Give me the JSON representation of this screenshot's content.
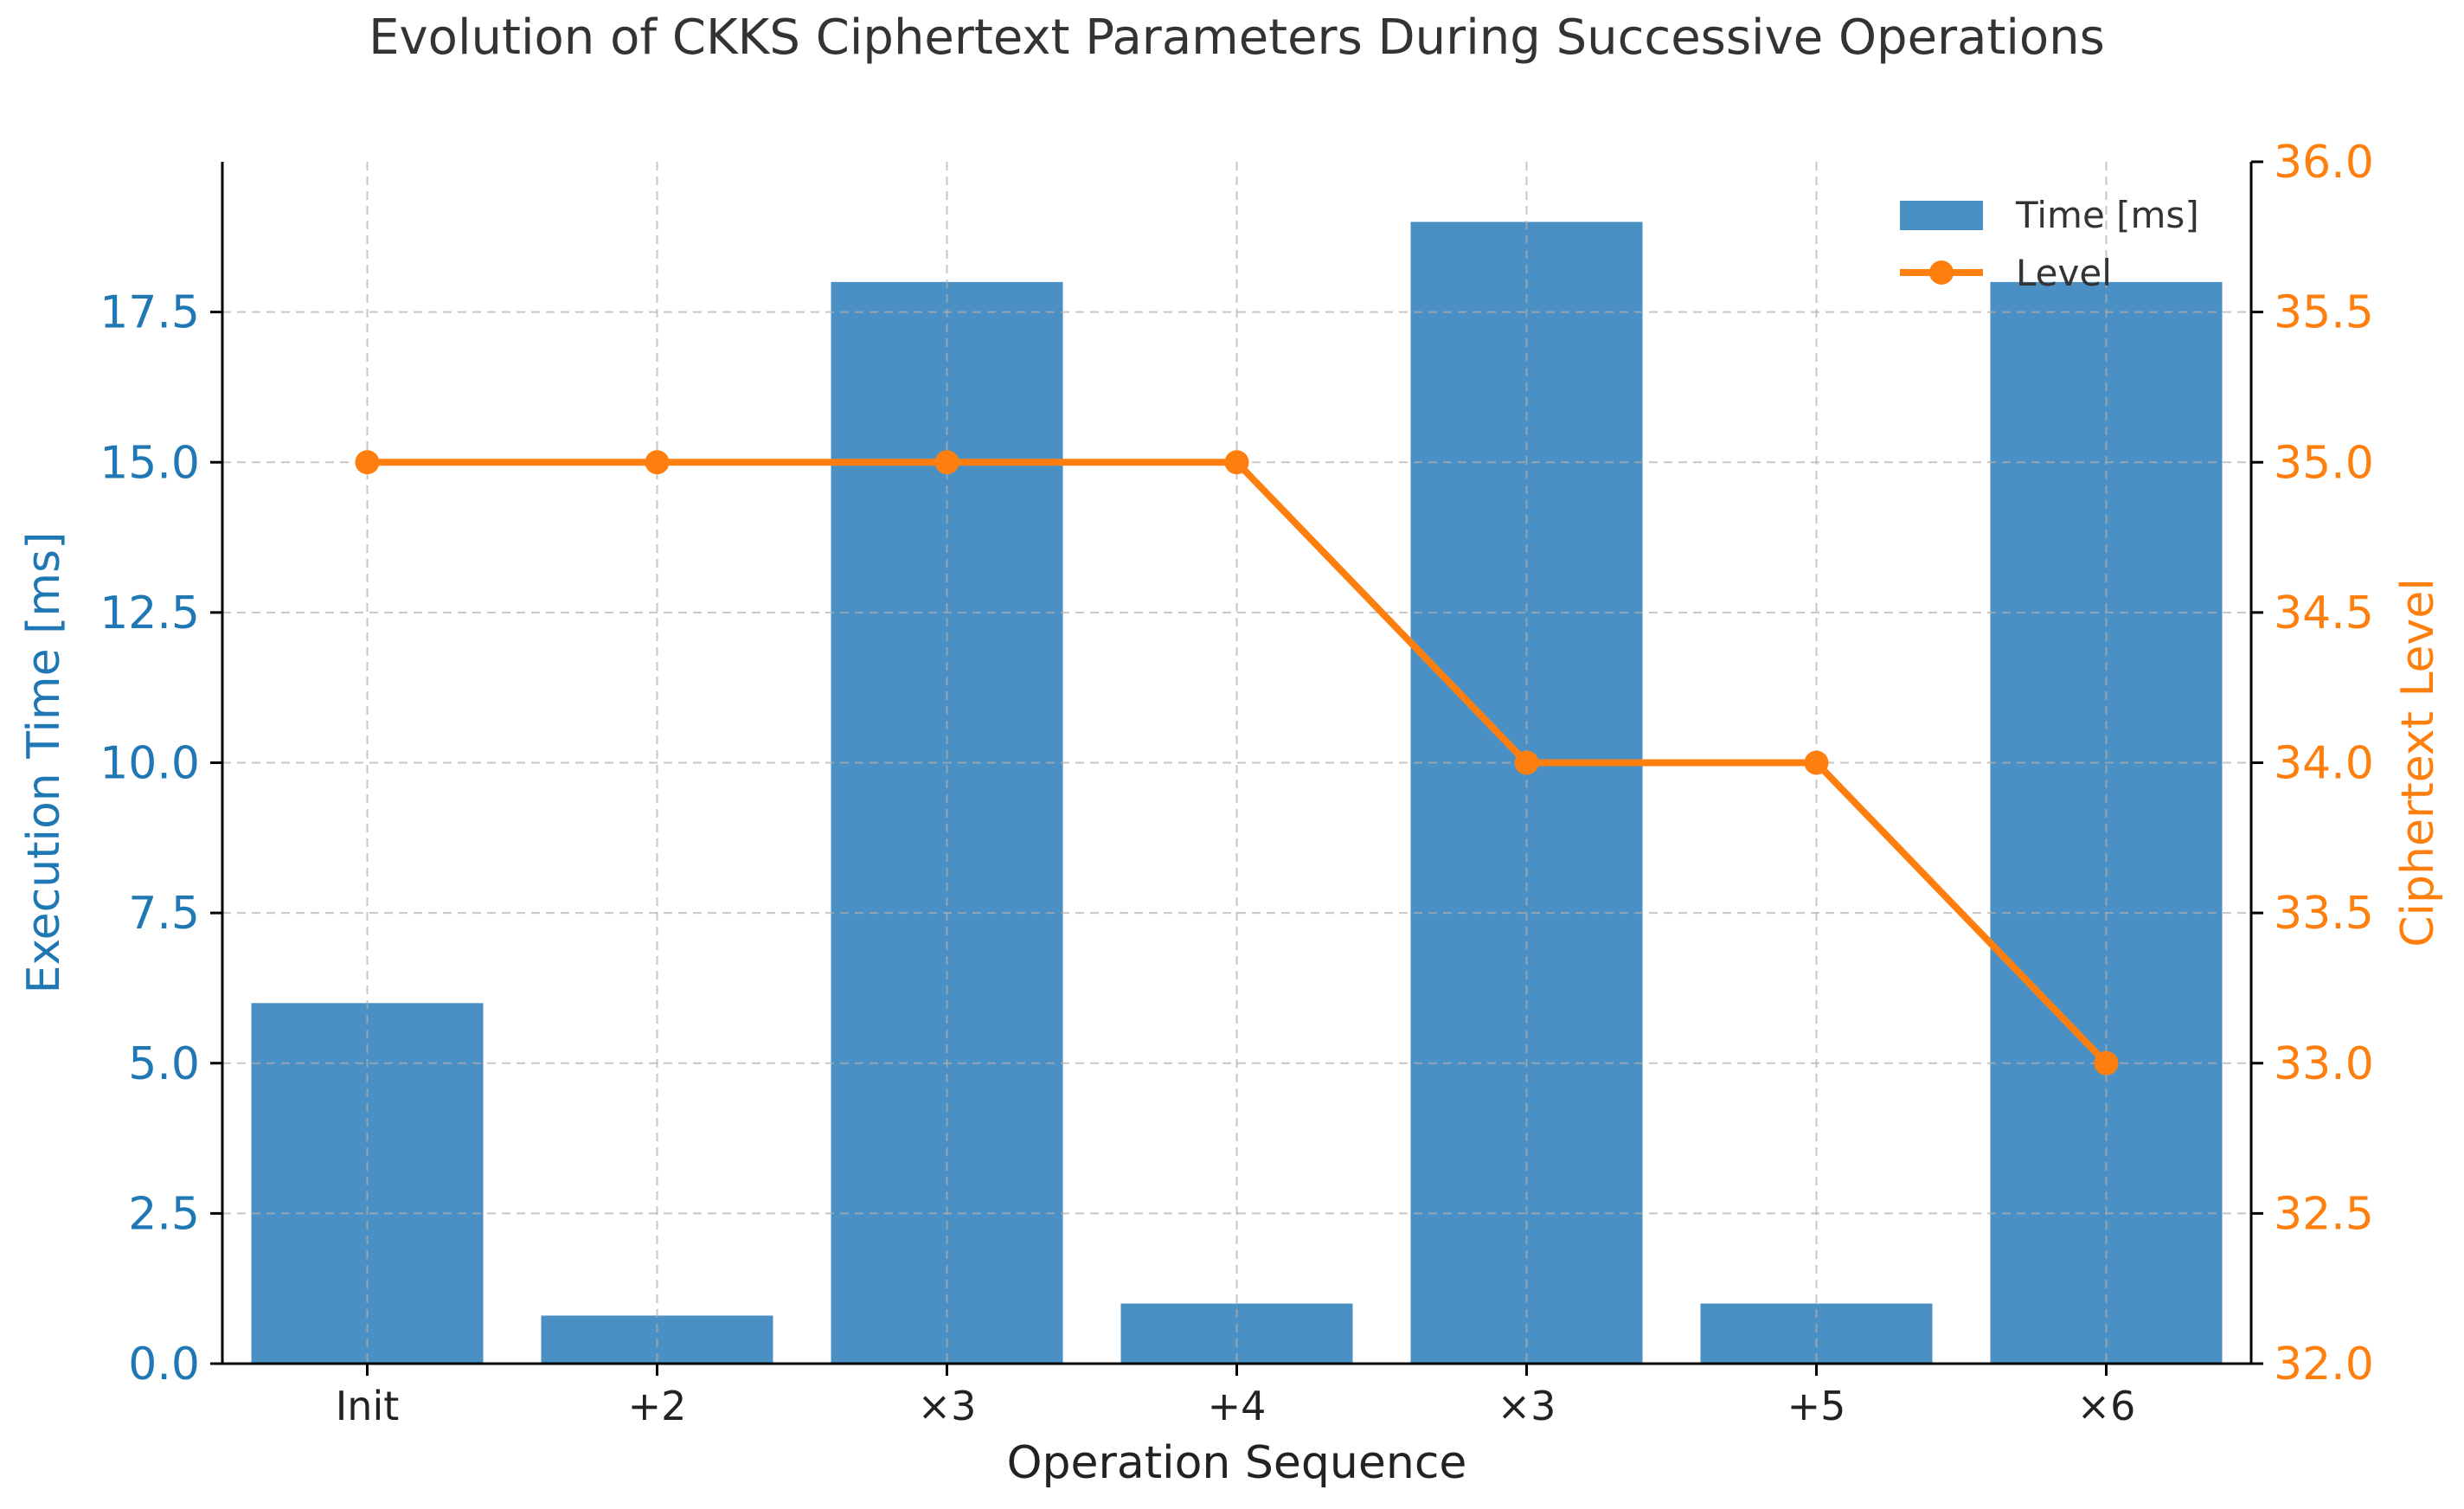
{
  "chart_data": {
    "type": "bar",
    "title": "Evolution of CKKS Ciphertext Parameters During Successive Operations",
    "xlabel": "Operation Sequence",
    "ylabel": "Execution Time [ms]",
    "y2label": "Ciphertext Level",
    "categories": [
      "Init",
      "+2",
      "×3",
      "+4",
      "×3",
      "+5",
      "×6"
    ],
    "ylim": [
      0,
      20
    ],
    "y_ticks": [
      "0.0",
      "2.5",
      "5.0",
      "7.5",
      "10.0",
      "12.5",
      "15.0",
      "17.5"
    ],
    "y2lim": [
      32,
      36
    ],
    "y2_ticks": [
      "32.0",
      "32.5",
      "33.0",
      "33.5",
      "34.0",
      "34.5",
      "35.0",
      "35.5",
      "36.0"
    ],
    "grid": true,
    "legend_position": "top-right",
    "series": [
      {
        "name": "Time [ms]",
        "type": "bar",
        "axis": "left",
        "color": "#4a90c4",
        "values": [
          6,
          0.8,
          18,
          1,
          19,
          1,
          18
        ]
      },
      {
        "name": "Level",
        "type": "line",
        "axis": "right",
        "color": "#ff7f0e",
        "values": [
          35,
          35,
          35,
          35,
          34,
          34,
          33
        ]
      }
    ],
    "colors": {
      "left_axis": "#1f77b4",
      "right_axis": "#ff7f0e",
      "grid": "#b0b0b0",
      "text": "#333333"
    }
  }
}
